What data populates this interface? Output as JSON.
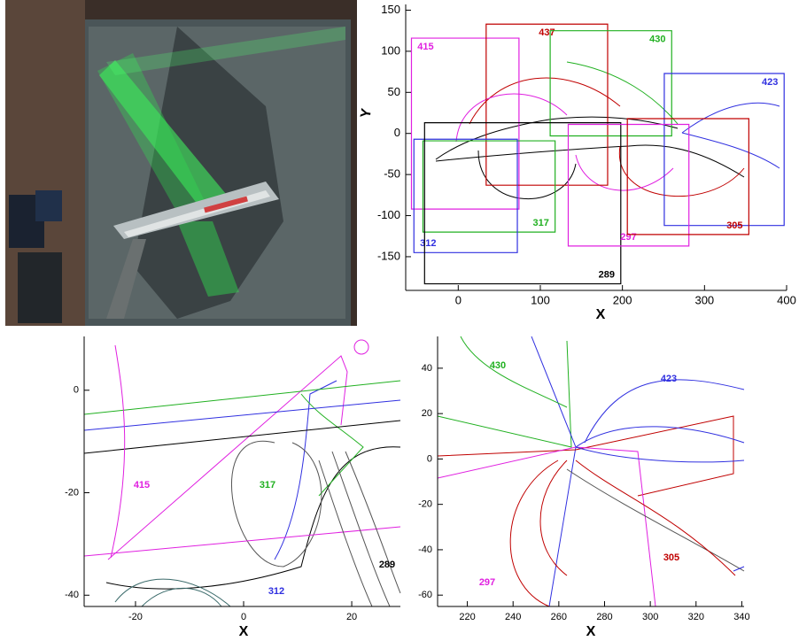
{
  "chart_data": [
    {
      "type": "polygon",
      "xlabel": "X",
      "ylabel": "Y",
      "xlim": [
        -64,
        400
      ],
      "ylim": [
        -191,
        157
      ],
      "xticks": [
        0,
        100,
        200,
        300,
        400
      ],
      "yticks": [
        -150,
        -100,
        -50,
        0,
        50,
        100,
        150
      ],
      "series": [
        {
          "name": "415",
          "color": "#e020e0",
          "x": [
            -57,
            74,
            74,
            -57
          ],
          "y": [
            116,
            116,
            -92,
            -92
          ]
        },
        {
          "name": "437",
          "color": "#c00000",
          "x": [
            34,
            182,
            182,
            34
          ],
          "y": [
            133,
            133,
            -63,
            -63
          ]
        },
        {
          "name": "430",
          "color": "#20b020",
          "x": [
            112,
            260,
            260,
            112
          ],
          "y": [
            125,
            125,
            -3,
            -3
          ]
        },
        {
          "name": "423",
          "color": "#3030e0",
          "x": [
            251,
            397,
            397,
            251
          ],
          "y": [
            73,
            73,
            -112,
            -112
          ]
        },
        {
          "name": "317",
          "color": "#20b020",
          "x": [
            -43,
            118,
            118,
            -43
          ],
          "y": [
            -9,
            -9,
            -120,
            -120
          ]
        },
        {
          "name": "312",
          "color": "#3030e0",
          "x": [
            -54,
            72,
            72,
            -54
          ],
          "y": [
            -7,
            -7,
            -145,
            -145
          ]
        },
        {
          "name": "289",
          "color": "#000000",
          "x": [
            -41,
            198,
            198,
            -41
          ],
          "y": [
            13,
            13,
            -183,
            -183
          ]
        },
        {
          "name": "297",
          "color": "#e020e0",
          "x": [
            134,
            281,
            281,
            134
          ],
          "y": [
            11,
            11,
            -137,
            -137
          ]
        },
        {
          "name": "305",
          "color": "#c00000",
          "x": [
            206,
            354,
            354,
            206
          ],
          "y": [
            18,
            18,
            -123,
            -123
          ]
        }
      ]
    },
    {
      "type": "contour",
      "xlabel": "X",
      "xlim": [
        -29.5,
        29
      ],
      "ylim": [
        -42.2,
        10.5
      ],
      "xticks": [
        -20,
        0,
        20
      ],
      "yticks": [
        -40,
        -20,
        0
      ],
      "labels": [
        {
          "text": "415",
          "color": "#e020e0"
        },
        {
          "text": "317",
          "color": "#20b020"
        },
        {
          "text": "312",
          "color": "#3030e0"
        },
        {
          "text": "289",
          "color": "#000000"
        }
      ]
    },
    {
      "type": "contour",
      "xlabel": "X",
      "xlim": [
        207,
        341
      ],
      "ylim": [
        -65,
        54
      ],
      "xticks": [
        220,
        240,
        260,
        280,
        300,
        320,
        340
      ],
      "yticks": [
        -60,
        -40,
        -20,
        0,
        20,
        40
      ],
      "labels": [
        {
          "text": "430",
          "color": "#20b020"
        },
        {
          "text": "423",
          "color": "#3030e0"
        },
        {
          "text": "305",
          "color": "#c00000"
        },
        {
          "text": "297",
          "color": "#e020e0"
        }
      ]
    }
  ]
}
